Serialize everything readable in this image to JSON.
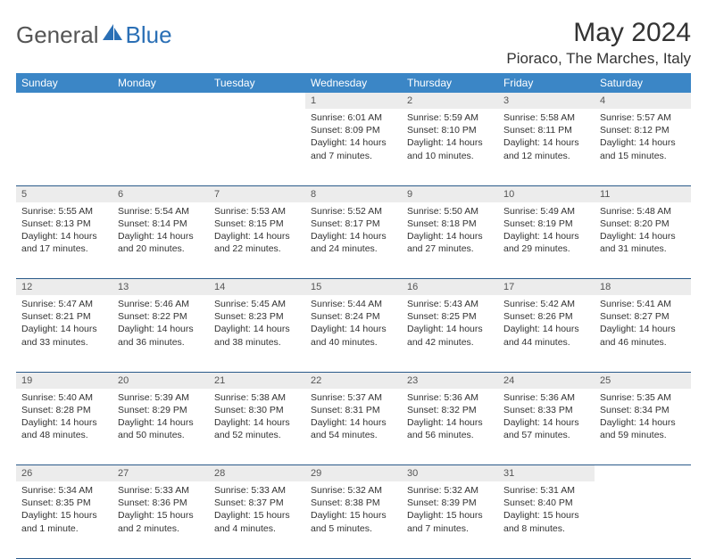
{
  "brand": {
    "part1": "General",
    "part2": "Blue",
    "color1": "#6b6b6b",
    "color2": "#2a6fb5"
  },
  "title": "May 2024",
  "subtitle": "Pioraco, The Marches, Italy",
  "header_bg": "#3b86c6",
  "daynum_bg": "#ececec",
  "rule_color": "#2a5a8a",
  "days": [
    "Sunday",
    "Monday",
    "Tuesday",
    "Wednesday",
    "Thursday",
    "Friday",
    "Saturday"
  ],
  "weeks": [
    [
      null,
      null,
      null,
      {
        "n": "1",
        "sr": "Sunrise: 6:01 AM",
        "ss": "Sunset: 8:09 PM",
        "dl": "Daylight: 14 hours and 7 minutes."
      },
      {
        "n": "2",
        "sr": "Sunrise: 5:59 AM",
        "ss": "Sunset: 8:10 PM",
        "dl": "Daylight: 14 hours and 10 minutes."
      },
      {
        "n": "3",
        "sr": "Sunrise: 5:58 AM",
        "ss": "Sunset: 8:11 PM",
        "dl": "Daylight: 14 hours and 12 minutes."
      },
      {
        "n": "4",
        "sr": "Sunrise: 5:57 AM",
        "ss": "Sunset: 8:12 PM",
        "dl": "Daylight: 14 hours and 15 minutes."
      }
    ],
    [
      {
        "n": "5",
        "sr": "Sunrise: 5:55 AM",
        "ss": "Sunset: 8:13 PM",
        "dl": "Daylight: 14 hours and 17 minutes."
      },
      {
        "n": "6",
        "sr": "Sunrise: 5:54 AM",
        "ss": "Sunset: 8:14 PM",
        "dl": "Daylight: 14 hours and 20 minutes."
      },
      {
        "n": "7",
        "sr": "Sunrise: 5:53 AM",
        "ss": "Sunset: 8:15 PM",
        "dl": "Daylight: 14 hours and 22 minutes."
      },
      {
        "n": "8",
        "sr": "Sunrise: 5:52 AM",
        "ss": "Sunset: 8:17 PM",
        "dl": "Daylight: 14 hours and 24 minutes."
      },
      {
        "n": "9",
        "sr": "Sunrise: 5:50 AM",
        "ss": "Sunset: 8:18 PM",
        "dl": "Daylight: 14 hours and 27 minutes."
      },
      {
        "n": "10",
        "sr": "Sunrise: 5:49 AM",
        "ss": "Sunset: 8:19 PM",
        "dl": "Daylight: 14 hours and 29 minutes."
      },
      {
        "n": "11",
        "sr": "Sunrise: 5:48 AM",
        "ss": "Sunset: 8:20 PM",
        "dl": "Daylight: 14 hours and 31 minutes."
      }
    ],
    [
      {
        "n": "12",
        "sr": "Sunrise: 5:47 AM",
        "ss": "Sunset: 8:21 PM",
        "dl": "Daylight: 14 hours and 33 minutes."
      },
      {
        "n": "13",
        "sr": "Sunrise: 5:46 AM",
        "ss": "Sunset: 8:22 PM",
        "dl": "Daylight: 14 hours and 36 minutes."
      },
      {
        "n": "14",
        "sr": "Sunrise: 5:45 AM",
        "ss": "Sunset: 8:23 PM",
        "dl": "Daylight: 14 hours and 38 minutes."
      },
      {
        "n": "15",
        "sr": "Sunrise: 5:44 AM",
        "ss": "Sunset: 8:24 PM",
        "dl": "Daylight: 14 hours and 40 minutes."
      },
      {
        "n": "16",
        "sr": "Sunrise: 5:43 AM",
        "ss": "Sunset: 8:25 PM",
        "dl": "Daylight: 14 hours and 42 minutes."
      },
      {
        "n": "17",
        "sr": "Sunrise: 5:42 AM",
        "ss": "Sunset: 8:26 PM",
        "dl": "Daylight: 14 hours and 44 minutes."
      },
      {
        "n": "18",
        "sr": "Sunrise: 5:41 AM",
        "ss": "Sunset: 8:27 PM",
        "dl": "Daylight: 14 hours and 46 minutes."
      }
    ],
    [
      {
        "n": "19",
        "sr": "Sunrise: 5:40 AM",
        "ss": "Sunset: 8:28 PM",
        "dl": "Daylight: 14 hours and 48 minutes."
      },
      {
        "n": "20",
        "sr": "Sunrise: 5:39 AM",
        "ss": "Sunset: 8:29 PM",
        "dl": "Daylight: 14 hours and 50 minutes."
      },
      {
        "n": "21",
        "sr": "Sunrise: 5:38 AM",
        "ss": "Sunset: 8:30 PM",
        "dl": "Daylight: 14 hours and 52 minutes."
      },
      {
        "n": "22",
        "sr": "Sunrise: 5:37 AM",
        "ss": "Sunset: 8:31 PM",
        "dl": "Daylight: 14 hours and 54 minutes."
      },
      {
        "n": "23",
        "sr": "Sunrise: 5:36 AM",
        "ss": "Sunset: 8:32 PM",
        "dl": "Daylight: 14 hours and 56 minutes."
      },
      {
        "n": "24",
        "sr": "Sunrise: 5:36 AM",
        "ss": "Sunset: 8:33 PM",
        "dl": "Daylight: 14 hours and 57 minutes."
      },
      {
        "n": "25",
        "sr": "Sunrise: 5:35 AM",
        "ss": "Sunset: 8:34 PM",
        "dl": "Daylight: 14 hours and 59 minutes."
      }
    ],
    [
      {
        "n": "26",
        "sr": "Sunrise: 5:34 AM",
        "ss": "Sunset: 8:35 PM",
        "dl": "Daylight: 15 hours and 1 minute."
      },
      {
        "n": "27",
        "sr": "Sunrise: 5:33 AM",
        "ss": "Sunset: 8:36 PM",
        "dl": "Daylight: 15 hours and 2 minutes."
      },
      {
        "n": "28",
        "sr": "Sunrise: 5:33 AM",
        "ss": "Sunset: 8:37 PM",
        "dl": "Daylight: 15 hours and 4 minutes."
      },
      {
        "n": "29",
        "sr": "Sunrise: 5:32 AM",
        "ss": "Sunset: 8:38 PM",
        "dl": "Daylight: 15 hours and 5 minutes."
      },
      {
        "n": "30",
        "sr": "Sunrise: 5:32 AM",
        "ss": "Sunset: 8:39 PM",
        "dl": "Daylight: 15 hours and 7 minutes."
      },
      {
        "n": "31",
        "sr": "Sunrise: 5:31 AM",
        "ss": "Sunset: 8:40 PM",
        "dl": "Daylight: 15 hours and 8 minutes."
      },
      null
    ]
  ]
}
